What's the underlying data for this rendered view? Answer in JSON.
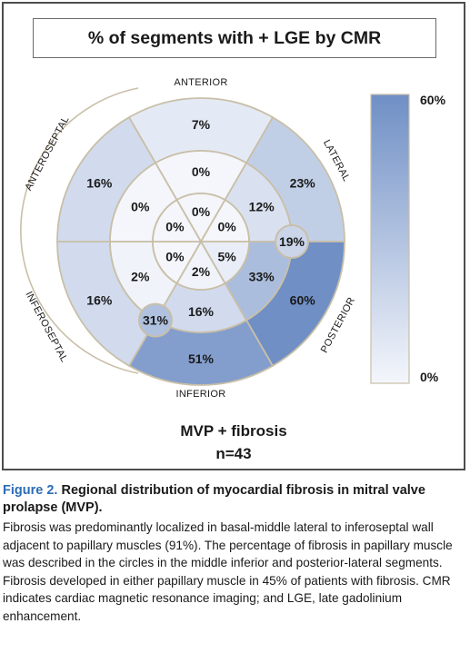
{
  "title": "% of segments with + LGE by CMR",
  "walls": {
    "anterior": "ANTERIOR",
    "lateral": "LATERAL",
    "posterior": "POSTERIOR",
    "inferior": "INFERIOR",
    "inferoseptal": "INFEROSEPTAL",
    "anteroseptal": "ANTEROSEPTAL"
  },
  "segments": {
    "basal": [
      {
        "wall": "anterior",
        "value": 7,
        "label": "7%"
      },
      {
        "wall": "anterolateral",
        "value": 23,
        "label": "23%"
      },
      {
        "wall": "inferolateral",
        "value": 60,
        "label": "60%"
      },
      {
        "wall": "inferior",
        "value": 51,
        "label": "51%"
      },
      {
        "wall": "inferoseptal",
        "value": 16,
        "label": "16%"
      },
      {
        "wall": "anteroseptal",
        "value": 16,
        "label": "16%"
      }
    ],
    "mid": [
      {
        "wall": "anterior",
        "value": 0,
        "label": "0%"
      },
      {
        "wall": "anterolateral",
        "value": 12,
        "label": "12%"
      },
      {
        "wall": "inferolateral",
        "value": 33,
        "label": "33%"
      },
      {
        "wall": "inferior",
        "value": 16,
        "label": "16%"
      },
      {
        "wall": "inferoseptal",
        "value": 2,
        "label": "2%"
      },
      {
        "wall": "anteroseptal",
        "value": 0,
        "label": "0%"
      }
    ],
    "apical": [
      {
        "wall": "anterior",
        "value": 0,
        "label": "0%"
      },
      {
        "wall": "lateral",
        "value": 0,
        "label": "0%"
      },
      {
        "wall": "inferior",
        "value": 5,
        "label": "5%"
      },
      {
        "wall": "inferior-septal",
        "value": 2,
        "label": "2%"
      },
      {
        "wall": "septal",
        "value": 0,
        "label": "0%"
      },
      {
        "wall": "anteroseptal",
        "value": 0,
        "label": "0%"
      }
    ]
  },
  "papillary_muscles": [
    {
      "name": "posterior-lateral",
      "value": 19,
      "label": "19%"
    },
    {
      "name": "middle-inferior",
      "value": 31,
      "label": "31%"
    }
  ],
  "color_scale": {
    "max_label": "60%",
    "min_label": "0%",
    "max_color": "#6f8fc5",
    "min_color": "#f4f6fb"
  },
  "group": {
    "name": "MVP + fibrosis",
    "n": "n=43"
  },
  "caption": {
    "figure_number": "Figure 2.",
    "title": "Regional distribution of myocardial fibrosis in mitral valve prolapse (MVP).",
    "body": "Fibrosis was predominantly localized in basal-middle lateral to inferoseptal wall adjacent to papillary muscles (91%). The percentage of fibrosis in papillary muscle was described in the circles in the middle inferior and posterior-lateral segments. Fibrosis developed in either papillary muscle in 45% of patients with fibrosis. CMR indicates cardiac magnetic resonance imaging; and LGE, late gadolinium enhancement."
  }
}
